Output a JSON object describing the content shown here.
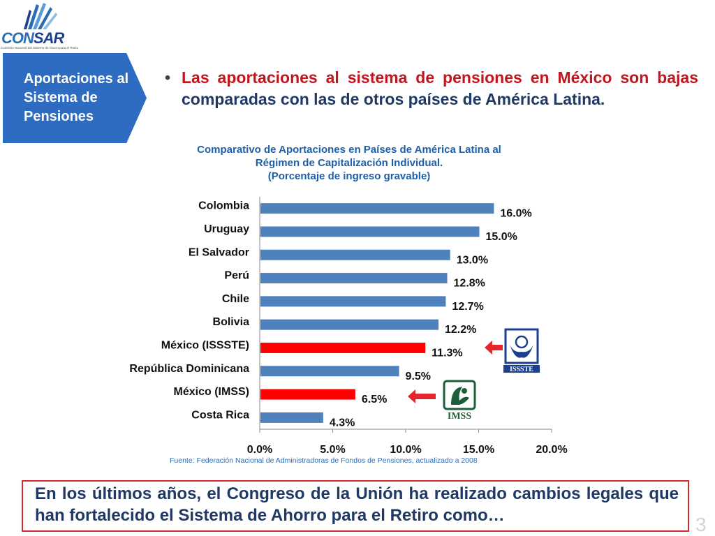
{
  "logo": {
    "text_a": "CON",
    "text_b": "SAR",
    "subtitle": "Comisión Nacional del Sistema de Ahorro para el Retiro"
  },
  "section": {
    "title": "Aportaciones al Sistema de Pensiones"
  },
  "bullet": {
    "marker": "•",
    "highlight": "Las aportaciones al sistema de pensiones en México son bajas",
    "rest": " comparadas con las de otros países de América Latina."
  },
  "chart_title": {
    "line1": "Comparativo de Aportaciones en Países de América Latina al",
    "line2": "Régimen de Capitalización Individual.",
    "line3": "(Porcentaje de ingreso gravable)"
  },
  "chart_data": {
    "type": "bar",
    "orientation": "horizontal",
    "categories": [
      "Colombia",
      "Uruguay",
      "El Salvador",
      "Perú",
      "Chile",
      "Bolivia",
      "México (ISSSTE)",
      "República Dominicana",
      "México (IMSS)",
      "Costa Rica"
    ],
    "values": [
      16.0,
      15.0,
      13.0,
      12.8,
      12.7,
      12.2,
      11.3,
      9.5,
      6.5,
      4.3
    ],
    "data_labels": [
      "16.0%",
      "15.0%",
      "13.0%",
      "12.8%",
      "12.7%",
      "12.2%",
      "11.3%",
      "9.5%",
      "6.5%",
      "4.3%"
    ],
    "bar_colors": [
      "#4f81bd",
      "#4f81bd",
      "#4f81bd",
      "#4f81bd",
      "#4f81bd",
      "#4f81bd",
      "#ff0000",
      "#4f81bd",
      "#ff0000",
      "#4f81bd"
    ],
    "x_ticks": [
      "0.0%",
      "5.0%",
      "10.0%",
      "15.0%",
      "20.0%"
    ],
    "xlim": [
      0,
      20
    ],
    "grid": false,
    "legend": "none"
  },
  "source": "Fuente: Federación Nacional de Administradoras de Fondos de Pensiones, actualizado a 2008",
  "logos": {
    "issste": "ISSSTE",
    "imss": "IMSS"
  },
  "note": "En los últimos años, el Congreso de la Unión ha realizado cambios legales que han fortalecido el Sistema de Ahorro para el Retiro como…",
  "page_number": "3",
  "colors": {
    "accent_blue": "#2d6cc0",
    "bar_blue": "#4f81bd",
    "highlight_red": "#ff0000",
    "text_navy": "#1f3864",
    "alert_red": "#c0161d"
  }
}
